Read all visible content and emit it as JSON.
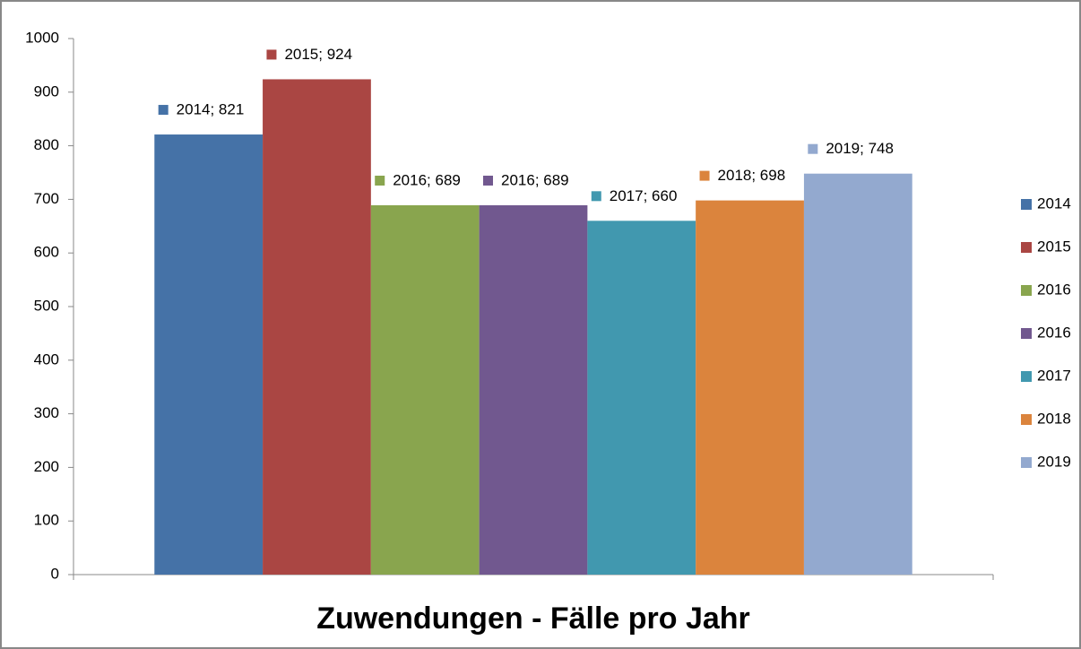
{
  "chart_data": {
    "type": "bar",
    "title": "Zuwendungen - Fälle pro Jahr",
    "ylim": [
      0,
      1000
    ],
    "yticks": [
      0,
      100,
      200,
      300,
      400,
      500,
      600,
      700,
      800,
      900,
      1000
    ],
    "legend": "right",
    "series": [
      {
        "name": "2014",
        "color": "#4572a7",
        "values": [
          821
        ],
        "value_labels": [
          "2014; 821"
        ]
      },
      {
        "name": "2015",
        "color": "#aa4643",
        "values": [
          924
        ],
        "value_labels": [
          "2015; 924"
        ]
      },
      {
        "name": "2016",
        "color": "#89a54e",
        "values": [
          689
        ],
        "value_labels": [
          "2016; 689"
        ]
      },
      {
        "name": "2016",
        "color": "#71588f",
        "values": [
          689
        ],
        "value_labels": [
          "2016; 689"
        ]
      },
      {
        "name": "2017",
        "color": "#4198af",
        "values": [
          660
        ],
        "value_labels": [
          "2017; 660"
        ]
      },
      {
        "name": "2018",
        "color": "#db843d",
        "values": [
          698
        ],
        "value_labels": [
          "2018; 698"
        ]
      },
      {
        "name": "2019",
        "color": "#93a9cf",
        "values": [
          748
        ],
        "value_labels": [
          "2019; 748"
        ]
      }
    ]
  }
}
